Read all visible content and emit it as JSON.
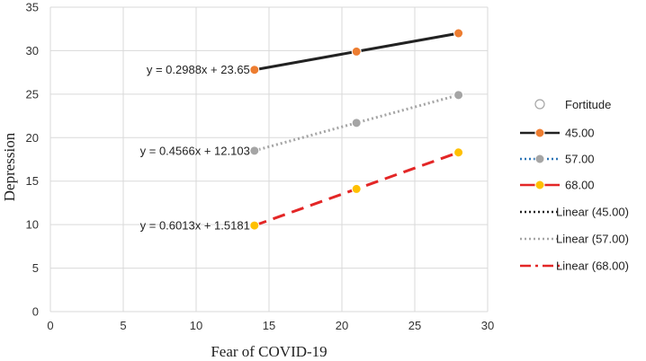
{
  "chart_data": {
    "type": "line",
    "xlabel": "Fear of COVID-19",
    "ylabel": "Depression",
    "xlim": [
      0,
      30
    ],
    "ylim": [
      0,
      35
    ],
    "xticks": [
      0,
      5,
      10,
      15,
      20,
      25,
      30
    ],
    "yticks": [
      0,
      5,
      10,
      15,
      20,
      25,
      30,
      35
    ],
    "grid": true,
    "legend_position": "right",
    "legend_title": "Fortitude",
    "series": [
      {
        "name": "45.00",
        "x": [
          14,
          21,
          28
        ],
        "y": [
          27.8,
          29.9,
          32.0
        ],
        "color": "#222222",
        "marker_color": "#ED7D31",
        "line_style": "solid"
      },
      {
        "name": "57.00",
        "x": [
          14,
          21,
          28
        ],
        "y": [
          18.5,
          21.7,
          24.9
        ],
        "color": "#A5A5A5",
        "marker_color": "#A5A5A5",
        "line_style": "dotted"
      },
      {
        "name": "68.00",
        "x": [
          14,
          21,
          28
        ],
        "y": [
          9.9,
          14.1,
          18.3
        ],
        "color": "#E32626",
        "marker_color": "#FFC000",
        "line_style": "dashed"
      }
    ],
    "trendlines": [
      {
        "name": "Linear (45.00)",
        "color": "#222222",
        "line_style": "dotted"
      },
      {
        "name": "Linear (57.00)",
        "color": "#A5A5A5",
        "line_style": "dotted"
      },
      {
        "name": "Linear (68.00)",
        "color": "#E32626",
        "line_style": "dashdot"
      }
    ],
    "annotations": [
      {
        "text": "y = 0.2988x + 23.65",
        "series": "45.00"
      },
      {
        "text": "y = 0.4566x + 12.103",
        "series": "57.00"
      },
      {
        "text": "y = 0.6013x + 1.5181",
        "series": "68.00"
      }
    ],
    "legend_swatch_colors": {
      "blue_line": "#2E75B6"
    }
  }
}
